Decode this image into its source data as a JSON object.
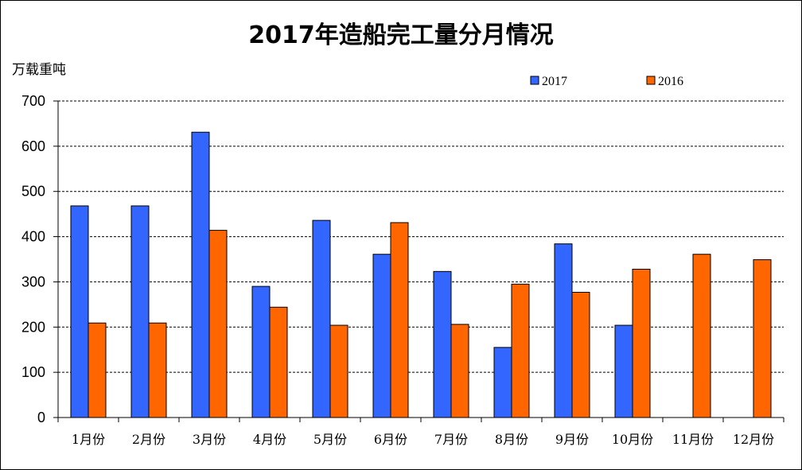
{
  "chart_data": {
    "type": "bar",
    "title": "2017年造船完工量分月情况",
    "ylabel": "万载重吨",
    "xlabel": "",
    "ylim": [
      0,
      700
    ],
    "yticks": [
      0,
      100,
      200,
      300,
      400,
      500,
      600,
      700
    ],
    "grid": true,
    "legend_position": "top-right",
    "categories": [
      "1月份",
      "2月份",
      "3月份",
      "4月份",
      "5月份",
      "6月份",
      "7月份",
      "8月份",
      "9月份",
      "10月份",
      "11月份",
      "12月份"
    ],
    "series": [
      {
        "name": "2017",
        "color": "#3366ff",
        "values": [
          468,
          468,
          631,
          290,
          436,
          361,
          323,
          155,
          384,
          204,
          null,
          null
        ]
      },
      {
        "name": "2016",
        "color": "#ff6600",
        "values": [
          209,
          209,
          414,
          244,
          204,
          431,
          206,
          295,
          277,
          328,
          361,
          349
        ]
      }
    ]
  }
}
